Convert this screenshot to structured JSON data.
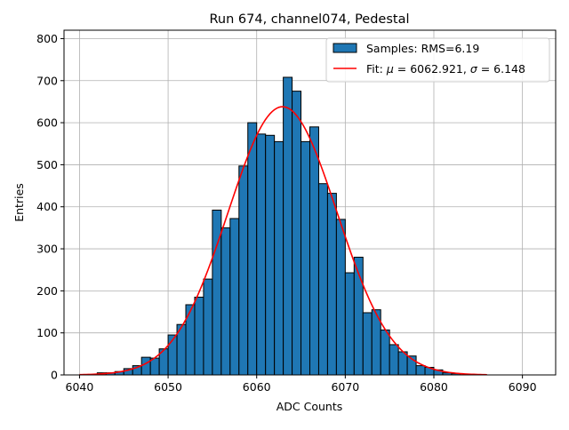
{
  "chart_data": {
    "type": "bar",
    "title": "Run 674, channel074, Pedestal",
    "xlabel": "ADC Counts",
    "ylabel": "Entries",
    "xlim": [
      6038.25,
      6093.75
    ],
    "ylim": [
      0,
      820
    ],
    "xticks": [
      6040,
      6050,
      6060,
      6070,
      6080,
      6090
    ],
    "yticks": [
      0,
      100,
      200,
      300,
      400,
      500,
      600,
      700,
      800
    ],
    "grid": true,
    "legend_position": "top-right",
    "series": [
      {
        "name": "Samples: RMS=6.19",
        "kind": "histogram",
        "color": "#1f77b4",
        "edgecolor": "#000000",
        "bin_width": 1,
        "bin_starts": [
          6042,
          6043,
          6044,
          6045,
          6046,
          6047,
          6048,
          6049,
          6050,
          6051,
          6052,
          6053,
          6054,
          6055,
          6056,
          6057,
          6058,
          6059,
          6060,
          6061,
          6062,
          6063,
          6064,
          6065,
          6066,
          6067,
          6068,
          6069,
          6070,
          6071,
          6072,
          6073,
          6074,
          6075,
          6076,
          6077,
          6078,
          6079,
          6080,
          6081,
          6082
        ],
        "values": [
          5,
          5,
          8,
          15,
          22,
          42,
          40,
          62,
          95,
          120,
          167,
          185,
          228,
          392,
          350,
          372,
          497,
          600,
          573,
          570,
          555,
          708,
          675,
          555,
          590,
          455,
          432,
          370,
          243,
          280,
          148,
          155,
          107,
          72,
          55,
          45,
          22,
          18,
          12,
          5,
          3
        ]
      },
      {
        "name": "Fit: μ = 6062.921, σ = 6.148",
        "kind": "gaussian_fit",
        "color": "#ff0000",
        "mu": 6062.921,
        "sigma": 6.148,
        "amplitude": 638,
        "x_range": [
          6040,
          6086
        ]
      }
    ],
    "legend": [
      {
        "label_prefix": "Samples: RMS=6.19",
        "label_math": ""
      },
      {
        "label_prefix": "Fit: ",
        "mu_symbol": "μ",
        "mu_text": " = 6062.921, ",
        "sigma_symbol": "σ",
        "sigma_text": " = 6.148"
      }
    ]
  }
}
